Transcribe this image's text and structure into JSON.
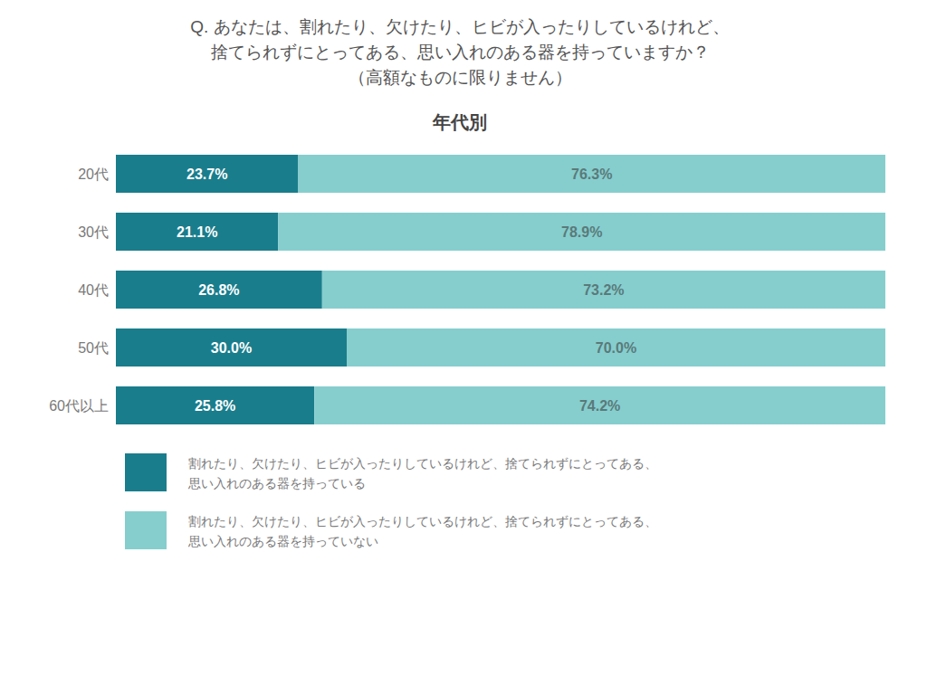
{
  "chart_data": {
    "type": "bar",
    "orientation": "horizontal",
    "stacked": true,
    "title": "Q.  あなたは、割れたり、欠けたり、ヒビが入ったりしているけれど、\n捨てられずにとってある、思い入れのある器を持っていますか？\n（高額なものに限りません）",
    "subtitle": "年代別",
    "categories": [
      "20代",
      "30代",
      "40代",
      "50代",
      "60代以上"
    ],
    "series": [
      {
        "name": "割れたり、欠けたり、ヒビが入ったりしているけれど、捨てられずにとってある、\n思い入れのある器を持っている",
        "color": "#1a7d8c",
        "values": [
          23.7,
          21.1,
          26.8,
          30.0,
          25.8
        ],
        "value_labels": [
          "23.7%",
          "21.1%",
          "26.8%",
          "30.0%",
          "25.8%"
        ]
      },
      {
        "name": "割れたり、欠けたり、ヒビが入ったりしているけれど、捨てられずにとってある、\n思い入れのある器を持っていない",
        "color": "#86cece",
        "values": [
          76.3,
          78.9,
          73.2,
          70.0,
          74.2
        ],
        "value_labels": [
          "76.3%",
          "78.9%",
          "73.2%",
          "70.0%",
          "74.2%"
        ]
      }
    ],
    "xlim": [
      0,
      100
    ],
    "data_labels": true,
    "tick_labels": "y",
    "grid": false
  }
}
